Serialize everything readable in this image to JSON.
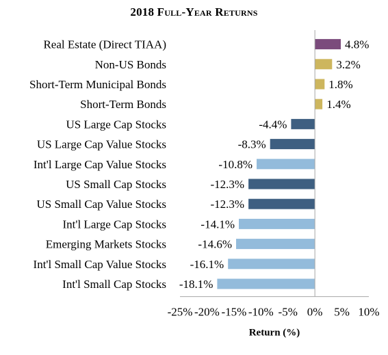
{
  "chart_data": {
    "type": "bar",
    "orientation": "horizontal",
    "title": "2018 Full-Year Returns",
    "xlabel": "Return (%)",
    "ylabel": "",
    "xlim": [
      -25,
      10
    ],
    "xticks": [
      -25,
      -20,
      -15,
      -10,
      -5,
      0,
      5,
      10
    ],
    "xtick_labels": [
      "-25%",
      "-20%",
      "-15%",
      "-10%",
      "-5%",
      "0%",
      "5%",
      "10%"
    ],
    "grid": false,
    "categories": [
      "Real Estate (Direct TIAA)",
      "Non-US Bonds",
      "Short-Term Municipal Bonds",
      "Short-Term Bonds",
      "US Large Cap Stocks",
      "US Large Cap Value Stocks",
      "Int'l Large Cap Value Stocks",
      "US Small Cap Stocks",
      "US Small Cap Value Stocks",
      "Int'l Large Cap Stocks",
      "Emerging Markets Stocks",
      "Int'l Small Cap Value Stocks",
      "Int'l Small Cap Stocks"
    ],
    "values": [
      4.8,
      3.2,
      1.8,
      1.4,
      -4.4,
      -8.3,
      -10.8,
      -12.3,
      -12.3,
      -14.1,
      -14.6,
      -16.1,
      -18.1
    ],
    "value_labels": [
      "4.8%",
      "3.2%",
      "1.8%",
      "1.4%",
      "-4.4%",
      "-8.3%",
      "-10.8%",
      "-12.3%",
      "-12.3%",
      "-14.1%",
      "-14.6%",
      "-16.1%",
      "-18.1%"
    ],
    "bar_colors": [
      "#7b4b7c",
      "#cdb65e",
      "#cdb65e",
      "#cdb65e",
      "#3e5f81",
      "#3e5f81",
      "#93bbdb",
      "#3e5f81",
      "#3e5f81",
      "#93bbdb",
      "#93bbdb",
      "#93bbdb",
      "#93bbdb"
    ]
  }
}
